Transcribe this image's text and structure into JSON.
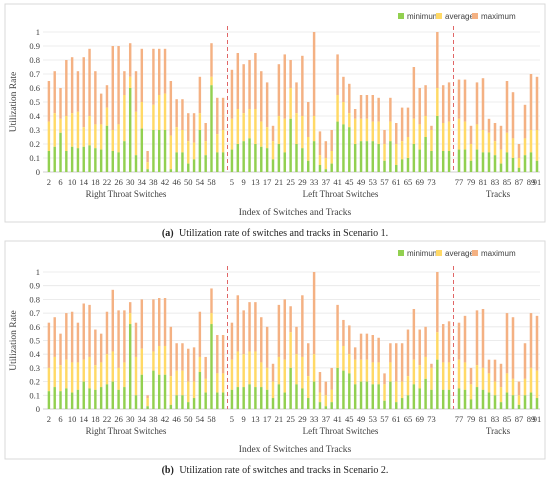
{
  "chart_data": [
    {
      "type": "bar",
      "stacked": true,
      "caption_tag": "(a)",
      "caption": "Utilization rate of switches and tracks in Scenario 1.",
      "xlabel": "Index of Switches and Tracks",
      "ylabel": "Utilization Rate",
      "ylim": [
        0,
        1
      ],
      "yticks": [
        "0",
        "0.1",
        "0.2",
        "0.3",
        "0.4",
        "0.5",
        "0.6",
        "0.7",
        "0.8",
        "0.9",
        "1"
      ],
      "legend": {
        "position": "top-right",
        "entries": [
          "minimum",
          "average",
          "maximum"
        ]
      },
      "groups": [
        {
          "label": "Right Throat Switches",
          "tick_labels": [
            "2",
            "6",
            "10",
            "14",
            "18",
            "22",
            "26",
            "30",
            "34",
            "38",
            "42",
            "46",
            "50",
            "54",
            "58"
          ],
          "minimum": [
            0.15,
            0.18,
            0.28,
            0.15,
            0.18,
            0.17,
            0.18,
            0.19,
            0.17,
            0.16,
            0.33,
            0.15,
            0.14,
            0.22,
            0.6,
            0.12,
            0.31,
            0.02,
            0.3,
            0.3,
            0.3,
            0.02,
            0.14,
            0.14,
            0.06,
            0.09,
            0.3,
            0.12,
            0.62,
            0.14,
            0.14
          ],
          "average": [
            0.36,
            0.42,
            0.38,
            0.4,
            0.42,
            0.43,
            0.32,
            0.4,
            0.34,
            0.34,
            0.46,
            0.3,
            0.34,
            0.55,
            0.68,
            0.43,
            0.5,
            0.07,
            0.48,
            0.55,
            0.56,
            0.26,
            0.32,
            0.3,
            0.22,
            0.21,
            0.42,
            0.22,
            0.68,
            0.27,
            0.3
          ],
          "maximum": [
            0.65,
            0.72,
            0.6,
            0.8,
            0.82,
            0.72,
            0.82,
            0.88,
            0.72,
            0.56,
            0.62,
            0.9,
            0.9,
            0.72,
            0.92,
            0.72,
            0.88,
            0.15,
            0.88,
            0.88,
            0.88,
            0.65,
            0.52,
            0.52,
            0.42,
            0.42,
            0.68,
            0.35,
            0.92,
            0.53,
            0.53
          ]
        },
        {
          "label": "Left Throat Switches",
          "tick_labels": [
            "5",
            "9",
            "13",
            "17",
            "21",
            "25",
            "29",
            "33",
            "37",
            "41",
            "45",
            "49",
            "53",
            "57",
            "61",
            "65",
            "69",
            "73"
          ],
          "minimum": [
            0.16,
            0.2,
            0.22,
            0.24,
            0.2,
            0.18,
            0.17,
            0.09,
            0.2,
            0.14,
            0.38,
            0.2,
            0.17,
            0.08,
            0.22,
            0.05,
            0.02,
            0.06,
            0.36,
            0.34,
            0.32,
            0.2,
            0.22,
            0.22,
            0.22,
            0.2,
            0.08,
            0.22,
            0.05,
            0.09,
            0.1,
            0.2,
            0.16,
            0.25,
            0.15,
            0.4,
            0.15,
            0.15
          ],
          "average": [
            0.38,
            0.45,
            0.42,
            0.45,
            0.45,
            0.36,
            0.32,
            0.22,
            0.4,
            0.38,
            0.6,
            0.42,
            0.4,
            0.25,
            0.4,
            0.12,
            0.1,
            0.15,
            0.55,
            0.5,
            0.42,
            0.38,
            0.38,
            0.38,
            0.36,
            0.36,
            0.2,
            0.36,
            0.2,
            0.22,
            0.25,
            0.38,
            0.34,
            0.4,
            0.3,
            0.6,
            0.35,
            0.36
          ],
          "maximum": [
            0.73,
            0.85,
            0.77,
            0.8,
            0.85,
            0.72,
            0.64,
            0.33,
            0.77,
            0.84,
            0.8,
            0.64,
            0.83,
            0.5,
            1.0,
            0.29,
            0.22,
            0.3,
            0.84,
            0.68,
            0.63,
            0.45,
            0.55,
            0.55,
            0.55,
            0.53,
            0.3,
            0.53,
            0.35,
            0.46,
            0.46,
            0.75,
            0.6,
            0.62,
            0.33,
            1.0,
            0.62,
            0.64
          ]
        },
        {
          "label": "Tracks",
          "tick_labels": [
            "77",
            "79",
            "81",
            "83",
            "85",
            "87",
            "89",
            "91"
          ],
          "minimum": [
            0.16,
            0.16,
            0.08,
            0.16,
            0.14,
            0.14,
            0.12,
            0.06,
            0.14,
            0.1,
            0.03,
            0.12,
            0.14,
            0.08
          ],
          "average": [
            0.38,
            0.36,
            0.2,
            0.34,
            0.3,
            0.28,
            0.22,
            0.16,
            0.28,
            0.24,
            0.1,
            0.24,
            0.3,
            0.3
          ],
          "maximum": [
            0.66,
            0.66,
            0.33,
            0.64,
            0.67,
            0.38,
            0.35,
            0.33,
            0.65,
            0.57,
            0.2,
            0.48,
            0.7,
            0.68
          ]
        }
      ]
    },
    {
      "type": "bar",
      "stacked": true,
      "caption_tag": "(b)",
      "caption": "Utilization rate of switches and tracks in Scenario 2.",
      "xlabel": "Index of Switches and Tracks",
      "ylabel": "Utilization Rate",
      "ylim": [
        0,
        1
      ],
      "yticks": [
        "0",
        "0.1",
        "0.2",
        "0.3",
        "0.4",
        "0.5",
        "0.6",
        "0.7",
        "0.8",
        "0.9",
        "1"
      ],
      "legend": {
        "position": "top-right",
        "entries": [
          "minimum",
          "average",
          "maximum"
        ]
      },
      "groups": [
        {
          "label": "Right Throat Switches",
          "tick_labels": [
            "2",
            "6",
            "10",
            "14",
            "18",
            "22",
            "26",
            "30",
            "34",
            "38",
            "42",
            "46",
            "50",
            "54",
            "58"
          ],
          "minimum": [
            0.13,
            0.16,
            0.13,
            0.15,
            0.12,
            0.14,
            0.2,
            0.15,
            0.14,
            0.16,
            0.18,
            0.2,
            0.14,
            0.16,
            0.62,
            0.1,
            0.25,
            0.02,
            0.28,
            0.25,
            0.25,
            0.03,
            0.1,
            0.1,
            0.05,
            0.08,
            0.27,
            0.12,
            0.62,
            0.12,
            0.12
          ],
          "average": [
            0.3,
            0.38,
            0.32,
            0.36,
            0.34,
            0.34,
            0.36,
            0.38,
            0.32,
            0.34,
            0.4,
            0.42,
            0.3,
            0.34,
            0.7,
            0.38,
            0.44,
            0.08,
            0.42,
            0.46,
            0.46,
            0.24,
            0.28,
            0.28,
            0.2,
            0.2,
            0.38,
            0.22,
            0.7,
            0.26,
            0.26
          ],
          "maximum": [
            0.63,
            0.67,
            0.55,
            0.7,
            0.71,
            0.63,
            0.77,
            0.76,
            0.58,
            0.55,
            0.71,
            0.87,
            0.72,
            0.72,
            0.78,
            0.63,
            0.8,
            0.1,
            0.8,
            0.81,
            0.81,
            0.6,
            0.48,
            0.48,
            0.44,
            0.45,
            0.71,
            0.38,
            0.88,
            0.54,
            0.54
          ]
        },
        {
          "label": "Left Throat Switches",
          "tick_labels": [
            "5",
            "9",
            "13",
            "17",
            "21",
            "25",
            "29",
            "33",
            "37",
            "41",
            "45",
            "49",
            "53",
            "57",
            "61",
            "65",
            "69",
            "73"
          ],
          "minimum": [
            0.14,
            0.16,
            0.16,
            0.18,
            0.16,
            0.16,
            0.14,
            0.08,
            0.18,
            0.12,
            0.3,
            0.18,
            0.15,
            0.08,
            0.2,
            0.05,
            0.02,
            0.05,
            0.3,
            0.28,
            0.26,
            0.18,
            0.2,
            0.2,
            0.18,
            0.18,
            0.06,
            0.2,
            0.05,
            0.08,
            0.1,
            0.18,
            0.15,
            0.22,
            0.14,
            0.36,
            0.14,
            0.14
          ],
          "average": [
            0.36,
            0.42,
            0.4,
            0.42,
            0.42,
            0.34,
            0.3,
            0.2,
            0.38,
            0.36,
            0.56,
            0.4,
            0.38,
            0.24,
            0.4,
            0.12,
            0.1,
            0.14,
            0.5,
            0.46,
            0.4,
            0.36,
            0.36,
            0.36,
            0.34,
            0.34,
            0.18,
            0.34,
            0.2,
            0.2,
            0.24,
            0.36,
            0.32,
            0.38,
            0.3,
            0.56,
            0.34,
            0.34
          ],
          "maximum": [
            0.63,
            0.83,
            0.72,
            0.78,
            0.78,
            0.67,
            0.6,
            0.33,
            0.76,
            0.8,
            0.75,
            0.6,
            0.83,
            0.48,
            1.0,
            0.27,
            0.2,
            0.3,
            0.76,
            0.65,
            0.61,
            0.45,
            0.55,
            0.55,
            0.54,
            0.52,
            0.26,
            0.48,
            0.48,
            0.48,
            0.58,
            0.73,
            0.58,
            0.6,
            0.33,
            1.0,
            0.62,
            0.64
          ]
        },
        {
          "label": "Tracks",
          "tick_labels": [
            "77",
            "79",
            "81",
            "83",
            "85",
            "87",
            "89",
            "91"
          ],
          "minimum": [
            0.15,
            0.14,
            0.07,
            0.16,
            0.14,
            0.12,
            0.1,
            0.05,
            0.12,
            0.1,
            0.03,
            0.1,
            0.12,
            0.08
          ],
          "average": [
            0.36,
            0.34,
            0.18,
            0.32,
            0.3,
            0.26,
            0.2,
            0.16,
            0.26,
            0.22,
            0.1,
            0.22,
            0.3,
            0.28
          ],
          "maximum": [
            0.63,
            0.68,
            0.3,
            0.72,
            0.73,
            0.36,
            0.36,
            0.33,
            0.7,
            0.67,
            0.2,
            0.48,
            0.7,
            0.68
          ]
        }
      ]
    }
  ],
  "colors": {
    "minimum": "#92d050",
    "average": "#ffd966",
    "maximum": "#f4b183",
    "divider": "#e06666",
    "grid": "#e6e6e6",
    "axis": "#bfbfbf"
  }
}
